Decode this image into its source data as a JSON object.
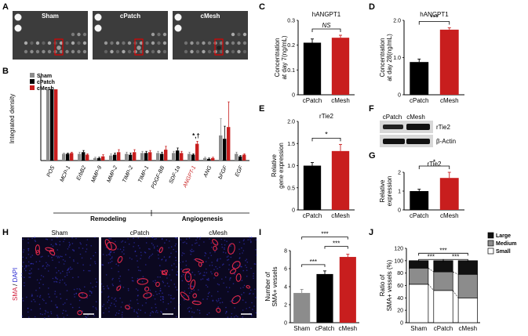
{
  "colors": {
    "gray": "#8c8c8c",
    "black": "#000000",
    "red": "#c81e1e",
    "blot_bg": "#3c3c3c"
  },
  "panel_letters": {
    "A": "A",
    "B": "B",
    "C": "C",
    "D": "D",
    "E": "E",
    "F": "F",
    "G": "G",
    "H": "H",
    "I": "I",
    "J": "J"
  },
  "panelA": {
    "labels": [
      "Sham",
      "cPatch",
      "cMesh"
    ]
  },
  "panelF": {
    "col_labels": [
      "cPatch",
      "cMesh"
    ],
    "row_labels": [
      "rTie2",
      "β-Actin"
    ]
  },
  "panelH": {
    "titles": [
      "Sham",
      "cPatch",
      "cMesh"
    ],
    "stain_label_sma": "SMA",
    "stain_sep": " / ",
    "stain_label_dapi": "DAPI"
  },
  "chart_data": [
    {
      "panel": "B",
      "type": "bar",
      "ylabel": "Integrated density",
      "series_names": [
        "Sham",
        "cPatch",
        "cMesh"
      ],
      "categories": [
        "POS",
        "MCP-1",
        "ErbB2",
        "MMP-9",
        "MMP-2",
        "TIMP-2",
        "TIMP-1",
        "PDGF-BB",
        "SDF-1a",
        "ANGPT-1",
        "ANG",
        "bFGF",
        "EGF"
      ],
      "series": [
        {
          "name": "Sham",
          "values": [
            0.85,
            0.08,
            0.08,
            0.03,
            0.06,
            0.08,
            0.09,
            0.09,
            0.09,
            0.08,
            0.03,
            0.3,
            0.08
          ]
        },
        {
          "name": "cPatch",
          "values": [
            0.85,
            0.08,
            0.1,
            0.03,
            0.07,
            0.07,
            0.09,
            0.08,
            0.12,
            0.07,
            0.02,
            0.26,
            0.05
          ]
        },
        {
          "name": "cMesh",
          "values": [
            0.85,
            0.09,
            0.07,
            0.05,
            0.1,
            0.1,
            0.1,
            0.13,
            0.09,
            0.2,
            0.03,
            0.4,
            0.07
          ]
        }
      ],
      "errors": [
        [
          0,
          0.01,
          0.02,
          0.01,
          0.02,
          0.02,
          0.02,
          0.02,
          0.02,
          0.02,
          0.01,
          0.2,
          0.02
        ],
        [
          0,
          0.01,
          0.02,
          0.01,
          0.02,
          0.02,
          0.02,
          0.02,
          0.03,
          0.01,
          0.01,
          0.15,
          0.01
        ],
        [
          0,
          0.01,
          0.01,
          0.02,
          0.03,
          0.03,
          0.02,
          0.04,
          0.02,
          0.03,
          0.01,
          0.3,
          0.01
        ]
      ],
      "highlight_category": "ANGPT-1",
      "annotation": "*,†",
      "groups": [
        {
          "label": "Remodeling",
          "from": "MCP-1",
          "to": "TIMP-1"
        },
        {
          "label": "Angiogenesis",
          "from": "PDGF-BB",
          "to": "EGF"
        }
      ]
    },
    {
      "panel": "C",
      "type": "bar",
      "title": "hANGPT1",
      "ylabel_line1": "Concentration",
      "ylabel_line2": "at day 7(ng/mL)",
      "categories": [
        "cPatch",
        "cMesh"
      ],
      "values": [
        0.21,
        0.23
      ],
      "errors": [
        0.015,
        0.01
      ],
      "ylim": [
        0,
        0.3
      ],
      "yticks": [
        "0",
        "0.1",
        "0.2",
        "0.3"
      ],
      "sig": "NS"
    },
    {
      "panel": "D",
      "type": "bar",
      "title": "hANGPT1",
      "ylabel_line1": "Concentration",
      "ylabel_line2": "at day 28(ng/mL)",
      "categories": [
        "cPatch",
        "cMesh"
      ],
      "values": [
        0.88,
        1.75
      ],
      "errors": [
        0.08,
        0.05
      ],
      "ylim": [
        0,
        2
      ],
      "yticks": [
        "0",
        "1.0",
        "2.0"
      ],
      "sig": "***"
    },
    {
      "panel": "E",
      "type": "bar",
      "title": "rTie2",
      "ylabel_line1": "Relative",
      "ylabel_line2": "gene expression",
      "categories": [
        "cPatch",
        "cMesh"
      ],
      "values": [
        1.0,
        1.33
      ],
      "errors": [
        0.07,
        0.15
      ],
      "ylim": [
        0,
        2
      ],
      "yticks": [
        "0",
        "0.5",
        "1.0",
        "1.5",
        "2.0"
      ],
      "sig": "*"
    },
    {
      "panel": "G",
      "type": "bar",
      "title": "rTie2",
      "ylabel_line1": "Relative",
      "ylabel_line2": "expression",
      "categories": [
        "cPatch",
        "cMesh"
      ],
      "values": [
        1.0,
        1.7
      ],
      "errors": [
        0.1,
        0.3
      ],
      "ylim": [
        0,
        2
      ],
      "yticks": [
        "0",
        "1",
        "2"
      ],
      "sig": "*"
    },
    {
      "panel": "I",
      "type": "bar",
      "ylabel_line1": "Number of",
      "ylabel_line2": "SMA+ vessels",
      "categories": [
        "Sham",
        "cPatch",
        "cMesh"
      ],
      "values": [
        3.3,
        5.4,
        7.3
      ],
      "errors": [
        0.4,
        0.35,
        0.3
      ],
      "ylim": [
        0,
        8
      ],
      "yticks": [
        "0",
        "2",
        "4",
        "6",
        "8"
      ],
      "sig": [
        {
          "a": 0,
          "b": 1,
          "label": "***"
        },
        {
          "a": 1,
          "b": 2,
          "label": "***"
        },
        {
          "a": 0,
          "b": 2,
          "label": "***"
        }
      ]
    },
    {
      "panel": "J",
      "type": "bar",
      "ylabel_line1": "Ratio of",
      "ylabel_line2": "SMA+ vessels (%)",
      "categories": [
        "Sham",
        "cPatch",
        "cMesh"
      ],
      "series": [
        {
          "name": "Small",
          "values": [
            62,
            52,
            40
          ]
        },
        {
          "name": "Medium",
          "values": [
            26,
            30,
            38
          ]
        },
        {
          "name": "Large",
          "values": [
            12,
            18,
            22
          ]
        }
      ],
      "legend_order": [
        "Large",
        "Medium",
        "Small"
      ],
      "ylim": [
        0,
        120
      ],
      "yticks": [
        "0",
        "20",
        "40",
        "60",
        "80",
        "100",
        "120"
      ],
      "sig": [
        {
          "a": 0,
          "b": 1,
          "label": "***"
        },
        {
          "a": 1,
          "b": 2,
          "label": "***"
        },
        {
          "a": 0,
          "b": 2,
          "label": "***"
        }
      ]
    }
  ]
}
